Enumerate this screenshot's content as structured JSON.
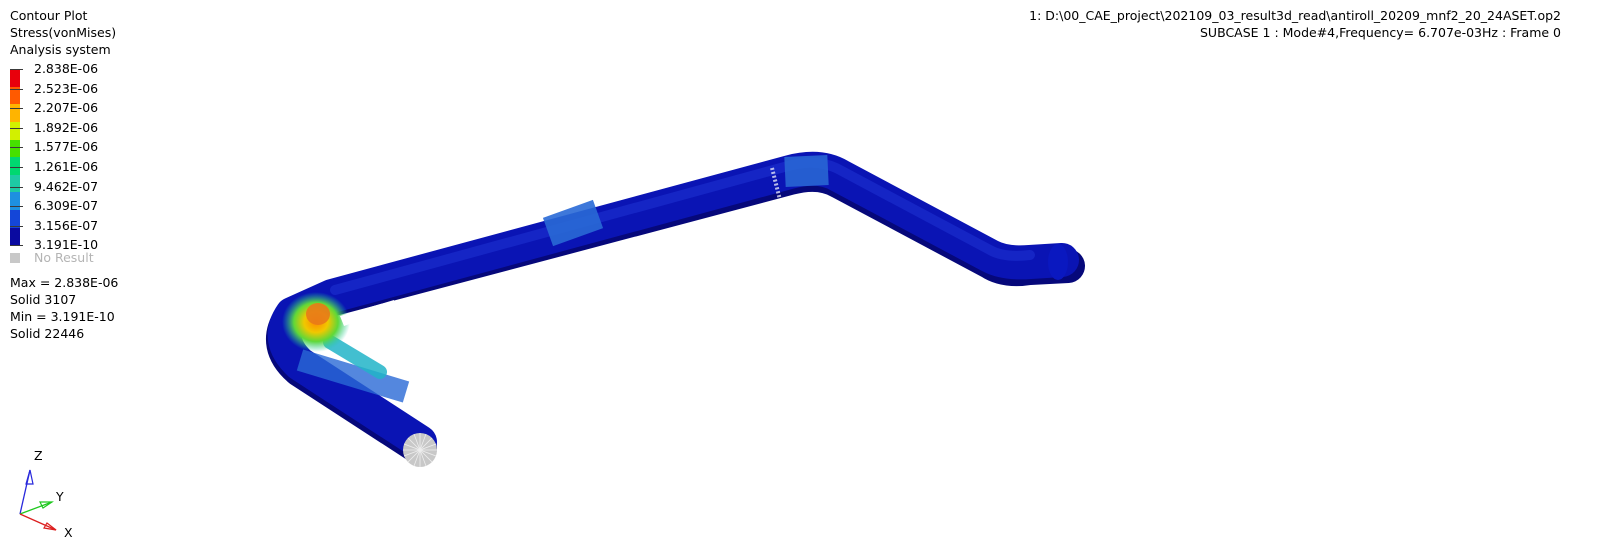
{
  "plot_header": {
    "title": "Contour Plot",
    "result_type": "Stress(vonMises)",
    "coordinate_system": "Analysis system"
  },
  "legend": {
    "labels": [
      "2.838E-06",
      "2.523E-06",
      "2.207E-06",
      "1.892E-06",
      "1.577E-06",
      "1.261E-06",
      "9.462E-07",
      "6.309E-07",
      "3.156E-07",
      "3.191E-10"
    ],
    "band_colors": [
      "#e8000c",
      "#ff5a00",
      "#ffb400",
      "#d2f000",
      "#46e000",
      "#00d870",
      "#1ecaa4",
      "#1e90e0",
      "#1446d8",
      "#0a0aa0"
    ],
    "no_result_label": "No Result",
    "no_result_color": "#c8c8c8"
  },
  "stats": {
    "max_line": "Max =  2.838E-06",
    "max_element": "Solid 3107",
    "min_line": "Min =  3.191E-10",
    "min_element": "Solid 22446"
  },
  "model_info": {
    "file_line": "1: D:\\00_CAE_project\\202109_03_result3d_read\\antiroll_20209_mnf2_20_24ASET.op2",
    "subcase_line": "SUBCASE 1 : Mode#4,Frequency=   6.707e-03Hz : Frame 0"
  },
  "triad": {
    "z_label": "Z",
    "y_label": "Y",
    "x_label": "X",
    "z_color": "#2828dc",
    "y_color": "#1ec81e",
    "x_color": "#dc1e1e"
  },
  "model_colors": {
    "base": "#0a14b4",
    "light_band": "#1e64d2",
    "hot": "#e07a10",
    "mesh_grey": "#c8c8c8"
  }
}
